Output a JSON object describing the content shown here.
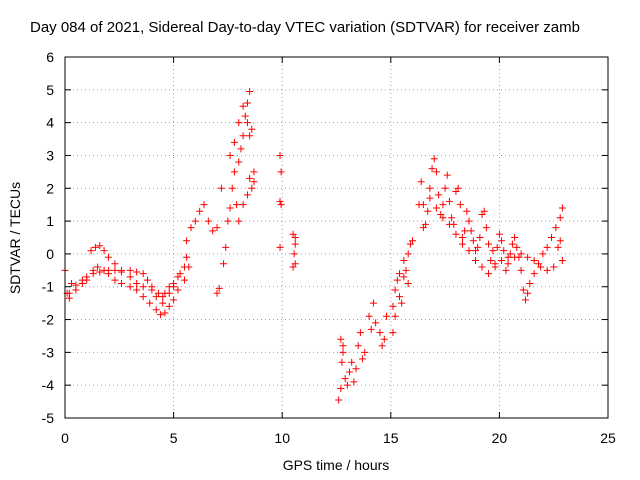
{
  "chart_data": {
    "type": "scatter",
    "title": "Day 084 of 2021, Sidereal Day-to-day VTEC variation (SDTVAR) for receiver zamb",
    "xlabel": "GPS time / hours",
    "ylabel": "SDTVAR / TECUs",
    "xlim": [
      0,
      25
    ],
    "ylim": [
      -5,
      6
    ],
    "xticks": [
      0,
      5,
      10,
      15,
      20,
      25
    ],
    "yticks": [
      -5,
      -4,
      -3,
      -2,
      -1,
      0,
      1,
      2,
      3,
      4,
      5,
      6
    ],
    "grid": true,
    "marker": "+",
    "color": "#ff0000",
    "series": [
      {
        "name": "SDTVAR",
        "points": [
          [
            0.0,
            -0.5
          ],
          [
            0.1,
            -1.2
          ],
          [
            0.2,
            -1.35
          ],
          [
            0.3,
            -0.9
          ],
          [
            0.5,
            -1.1
          ],
          [
            0.8,
            -0.9
          ],
          [
            1.0,
            -0.8
          ],
          [
            1.3,
            -0.5
          ],
          [
            1.5,
            -0.4
          ],
          [
            1.8,
            -0.5
          ],
          [
            2.0,
            -0.6
          ],
          [
            2.3,
            -0.8
          ],
          [
            2.6,
            -0.9
          ],
          [
            3.0,
            -1.0
          ],
          [
            3.3,
            -1.1
          ],
          [
            3.6,
            -1.3
          ],
          [
            3.9,
            -1.5
          ],
          [
            4.2,
            -1.7
          ],
          [
            4.4,
            -1.85
          ],
          [
            4.6,
            -1.8
          ],
          [
            4.8,
            -1.6
          ],
          [
            5.0,
            -1.4
          ],
          [
            5.2,
            -1.1
          ],
          [
            5.5,
            -0.8
          ],
          [
            5.7,
            -0.4
          ],
          [
            0.2,
            -1.2
          ],
          [
            0.5,
            -0.95
          ],
          [
            0.8,
            -0.8
          ],
          [
            1.0,
            -0.7
          ],
          [
            1.3,
            -0.6
          ],
          [
            1.6,
            -0.55
          ],
          [
            2.0,
            -0.5
          ],
          [
            2.3,
            -0.5
          ],
          [
            2.6,
            -0.55
          ],
          [
            3.0,
            -0.5
          ],
          [
            3.3,
            -0.55
          ],
          [
            3.6,
            -0.6
          ],
          [
            3.8,
            -0.8
          ],
          [
            4.0,
            -1.0
          ],
          [
            4.3,
            -1.2
          ],
          [
            4.5,
            -1.3
          ],
          [
            4.8,
            -1.2
          ],
          [
            5.0,
            -1.0
          ],
          [
            5.2,
            -0.7
          ],
          [
            5.5,
            -0.4
          ],
          [
            1.2,
            0.1
          ],
          [
            1.4,
            0.2
          ],
          [
            1.6,
            0.25
          ],
          [
            1.8,
            0.1
          ],
          [
            2.0,
            -0.1
          ],
          [
            2.3,
            -0.3
          ],
          [
            2.6,
            -0.5
          ],
          [
            3.0,
            -0.7
          ],
          [
            3.3,
            -0.9
          ],
          [
            3.6,
            -1.0
          ],
          [
            4.0,
            -1.1
          ],
          [
            4.2,
            -1.3
          ],
          [
            4.5,
            -1.5
          ],
          [
            4.6,
            -1.2
          ],
          [
            4.8,
            -1.0
          ],
          [
            5.0,
            -0.9
          ],
          [
            5.3,
            -0.6
          ],
          [
            5.6,
            -0.1
          ],
          [
            5.6,
            0.4
          ],
          [
            5.8,
            0.8
          ],
          [
            6.0,
            1.0
          ],
          [
            6.2,
            1.3
          ],
          [
            6.4,
            1.5
          ],
          [
            6.6,
            1.0
          ],
          [
            6.8,
            0.7
          ],
          [
            7.0,
            0.8
          ],
          [
            7.0,
            -1.2
          ],
          [
            7.1,
            -1.05
          ],
          [
            7.3,
            -0.3
          ],
          [
            7.4,
            0.2
          ],
          [
            7.5,
            1.0
          ],
          [
            7.6,
            1.4
          ],
          [
            7.7,
            2.0
          ],
          [
            7.8,
            2.5
          ],
          [
            7.9,
            1.5
          ],
          [
            8.0,
            2.8
          ],
          [
            8.1,
            3.2
          ],
          [
            8.2,
            3.6
          ],
          [
            8.3,
            4.2
          ],
          [
            8.4,
            4.6
          ],
          [
            8.5,
            4.95
          ],
          [
            8.4,
            4.0
          ],
          [
            8.5,
            3.6
          ],
          [
            8.6,
            3.8
          ],
          [
            8.6,
            2.0
          ],
          [
            8.7,
            2.2
          ],
          [
            8.7,
            2.5
          ],
          [
            8.0,
            1.0
          ],
          [
            8.2,
            1.5
          ],
          [
            8.4,
            1.8
          ],
          [
            8.5,
            2.3
          ],
          [
            7.2,
            2.0
          ],
          [
            7.6,
            3.0
          ],
          [
            7.8,
            3.4
          ],
          [
            8.0,
            4.0
          ],
          [
            8.2,
            4.5
          ],
          [
            9.9,
            3.0
          ],
          [
            9.95,
            2.5
          ],
          [
            9.9,
            1.6
          ],
          [
            9.95,
            1.5
          ],
          [
            9.9,
            0.2
          ],
          [
            10.5,
            0.6
          ],
          [
            10.6,
            0.3
          ],
          [
            10.55,
            0.0
          ],
          [
            10.6,
            -0.3
          ],
          [
            10.5,
            -0.4
          ],
          [
            10.6,
            0.5
          ],
          [
            12.6,
            -4.45
          ],
          [
            12.7,
            -4.1
          ],
          [
            12.75,
            -3.3
          ],
          [
            12.8,
            -2.8
          ],
          [
            12.7,
            -2.6
          ],
          [
            12.8,
            -3.0
          ],
          [
            12.9,
            -3.8
          ],
          [
            13.0,
            -4.0
          ],
          [
            13.1,
            -3.6
          ],
          [
            13.2,
            -3.3
          ],
          [
            13.3,
            -3.9
          ],
          [
            13.4,
            -3.5
          ],
          [
            13.5,
            -2.8
          ],
          [
            13.6,
            -2.4
          ],
          [
            13.7,
            -3.2
          ],
          [
            13.8,
            -3.0
          ],
          [
            14.0,
            -1.9
          ],
          [
            14.1,
            -2.3
          ],
          [
            14.2,
            -1.5
          ],
          [
            14.3,
            -2.1
          ],
          [
            14.5,
            -2.4
          ],
          [
            14.6,
            -2.8
          ],
          [
            14.7,
            -2.6
          ],
          [
            14.8,
            -1.9
          ],
          [
            15.1,
            -2.4
          ],
          [
            15.1,
            -1.6
          ],
          [
            15.2,
            -1.9
          ],
          [
            15.2,
            -1.1
          ],
          [
            15.3,
            -0.8
          ],
          [
            15.4,
            -1.3
          ],
          [
            15.4,
            -0.6
          ],
          [
            15.5,
            -1.5
          ],
          [
            15.6,
            -0.7
          ],
          [
            15.6,
            -0.2
          ],
          [
            15.7,
            -0.5
          ],
          [
            15.8,
            0.0
          ],
          [
            15.9,
            0.3
          ],
          [
            15.8,
            -0.9
          ],
          [
            16.0,
            0.4
          ],
          [
            16.3,
            1.5
          ],
          [
            16.4,
            2.2
          ],
          [
            16.5,
            1.5
          ],
          [
            16.5,
            0.8
          ],
          [
            16.6,
            0.9
          ],
          [
            16.7,
            1.3
          ],
          [
            16.8,
            2.0
          ],
          [
            16.9,
            2.6
          ],
          [
            17.0,
            2.9
          ],
          [
            17.1,
            2.5
          ],
          [
            17.2,
            1.8
          ],
          [
            17.3,
            1.2
          ],
          [
            17.4,
            1.5
          ],
          [
            17.5,
            2.0
          ],
          [
            17.6,
            2.4
          ],
          [
            17.7,
            1.6
          ],
          [
            17.8,
            1.1
          ],
          [
            17.9,
            0.9
          ],
          [
            18.0,
            1.9
          ],
          [
            18.1,
            2.0
          ],
          [
            18.2,
            1.5
          ],
          [
            18.3,
            0.5
          ],
          [
            18.4,
            0.7
          ],
          [
            18.5,
            1.3
          ],
          [
            18.6,
            1.0
          ],
          [
            18.7,
            0.7
          ],
          [
            18.8,
            0.4
          ],
          [
            18.9,
            0.1
          ],
          [
            19.0,
            0.2
          ],
          [
            19.1,
            0.5
          ],
          [
            19.2,
            1.2
          ],
          [
            19.3,
            1.3
          ],
          [
            19.4,
            0.8
          ],
          [
            19.5,
            0.3
          ],
          [
            19.6,
            -0.2
          ],
          [
            19.7,
            0.1
          ],
          [
            19.8,
            -0.3
          ],
          [
            19.9,
            0.2
          ],
          [
            20.0,
            0.6
          ],
          [
            20.1,
            0.4
          ],
          [
            20.2,
            0.1
          ],
          [
            20.3,
            -0.5
          ],
          [
            20.4,
            -0.3
          ],
          [
            20.5,
            0.0
          ],
          [
            20.6,
            0.3
          ],
          [
            20.7,
            0.5
          ],
          [
            20.8,
            0.2
          ],
          [
            20.9,
            -0.1
          ],
          [
            21.0,
            -0.5
          ],
          [
            21.1,
            -1.1
          ],
          [
            21.2,
            -1.4
          ],
          [
            21.3,
            -1.2
          ],
          [
            21.4,
            -0.9
          ],
          [
            21.6,
            -0.6
          ],
          [
            21.8,
            -0.3
          ],
          [
            22.0,
            0.0
          ],
          [
            22.2,
            0.2
          ],
          [
            22.4,
            0.5
          ],
          [
            22.6,
            0.8
          ],
          [
            22.8,
            1.1
          ],
          [
            22.9,
            1.4
          ],
          [
            22.7,
            0.2
          ],
          [
            22.8,
            0.4
          ],
          [
            22.9,
            -0.2
          ],
          [
            22.5,
            -0.4
          ],
          [
            22.2,
            -0.5
          ],
          [
            21.9,
            -0.4
          ],
          [
            21.6,
            -0.2
          ],
          [
            21.3,
            -0.1
          ],
          [
            21.0,
            0.0
          ],
          [
            20.7,
            -0.1
          ],
          [
            20.4,
            -0.1
          ],
          [
            20.1,
            -0.2
          ],
          [
            19.8,
            -0.4
          ],
          [
            19.5,
            -0.6
          ],
          [
            19.2,
            -0.4
          ],
          [
            18.9,
            -0.2
          ],
          [
            18.6,
            0.1
          ],
          [
            18.3,
            0.3
          ],
          [
            18.0,
            0.6
          ],
          [
            17.7,
            0.9
          ],
          [
            17.4,
            1.1
          ],
          [
            17.1,
            1.4
          ],
          [
            16.8,
            1.7
          ]
        ]
      }
    ]
  }
}
